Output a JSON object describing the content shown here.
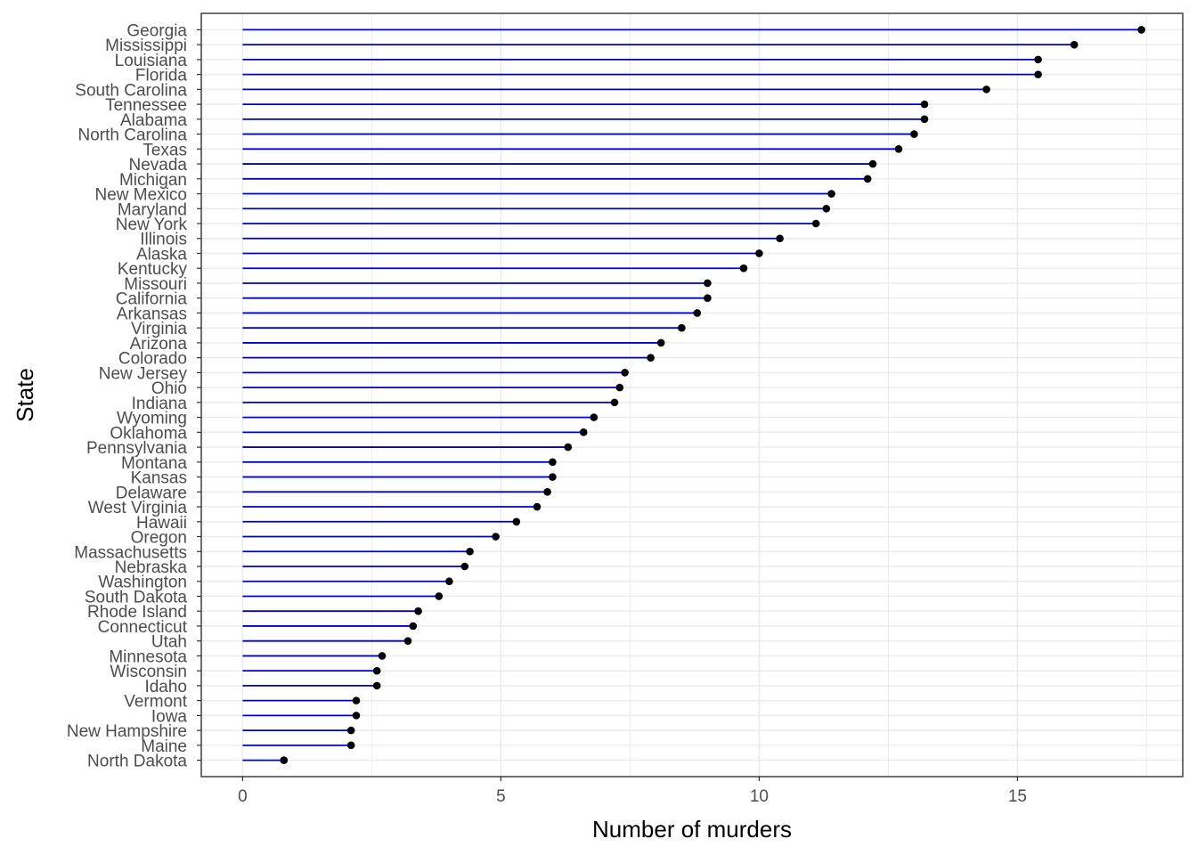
{
  "chart_data": {
    "type": "lollipop",
    "xlabel": "Number of murders",
    "ylabel": "State",
    "xlim": [
      -0.8,
      18.2
    ],
    "xticks": [
      0,
      5,
      10,
      15
    ],
    "grid": true,
    "colors": {
      "stem": "#0000cd",
      "point": "#000000",
      "grid": "#ebebeb",
      "border": "#333333"
    },
    "categories": [
      "Georgia",
      "Mississippi",
      "Louisiana",
      "Florida",
      "South Carolina",
      "Tennessee",
      "Alabama",
      "North Carolina",
      "Texas",
      "Nevada",
      "Michigan",
      "New Mexico",
      "Maryland",
      "New York",
      "Illinois",
      "Alaska",
      "Kentucky",
      "Missouri",
      "California",
      "Arkansas",
      "Virginia",
      "Arizona",
      "Colorado",
      "New Jersey",
      "Ohio",
      "Indiana",
      "Wyoming",
      "Oklahoma",
      "Pennsylvania",
      "Montana",
      "Kansas",
      "Delaware",
      "West Virginia",
      "Hawaii",
      "Oregon",
      "Massachusetts",
      "Nebraska",
      "Washington",
      "South Dakota",
      "Rhode Island",
      "Connecticut",
      "Utah",
      "Minnesota",
      "Wisconsin",
      "Idaho",
      "Vermont",
      "Iowa",
      "New Hampshire",
      "Maine",
      "North Dakota"
    ],
    "values": [
      17.4,
      16.1,
      15.4,
      15.4,
      14.4,
      13.2,
      13.2,
      13.0,
      12.7,
      12.2,
      12.1,
      11.4,
      11.3,
      11.1,
      10.4,
      10.0,
      9.7,
      9.0,
      9.0,
      8.8,
      8.5,
      8.1,
      7.9,
      7.4,
      7.3,
      7.2,
      6.8,
      6.6,
      6.3,
      6.0,
      6.0,
      5.9,
      5.7,
      5.3,
      4.9,
      4.4,
      4.3,
      4.0,
      3.8,
      3.4,
      3.3,
      3.2,
      2.7,
      2.6,
      2.6,
      2.2,
      2.2,
      2.1,
      2.1,
      0.8
    ]
  }
}
